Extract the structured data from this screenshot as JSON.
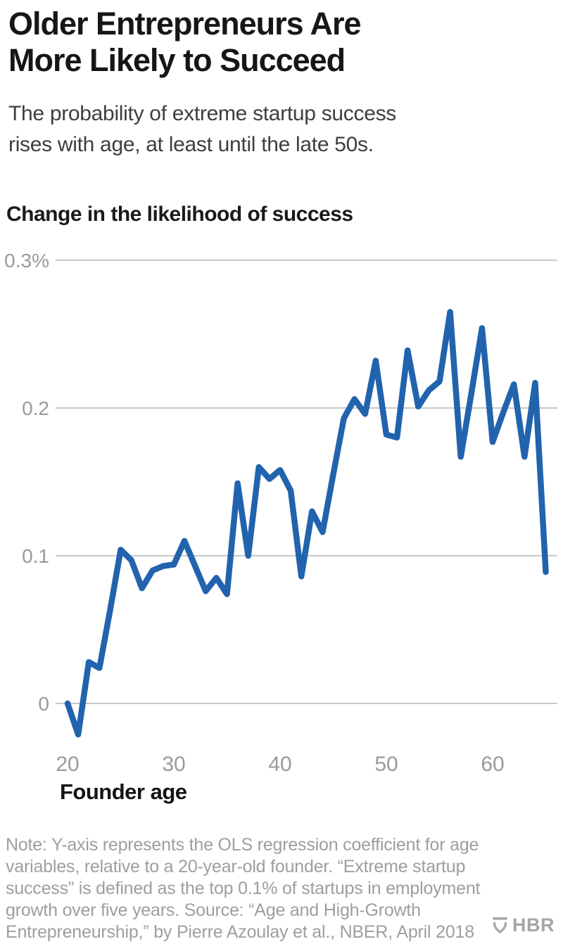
{
  "header": {
    "title_lines": [
      "Older Entrepreneurs Are",
      "More Likely to Succeed"
    ],
    "subtitle_lines": [
      "The probability of extreme startup success",
      "rises with age, at least until the late 50s."
    ]
  },
  "chart_data": {
    "type": "line",
    "title": "Change in the likelihood of success",
    "xlabel": "Founder age",
    "ylabel": "Change in the likelihood of success (%)",
    "series_name": "OLS regression coefficient relative to a 20-year-old founder",
    "x": [
      20,
      21,
      22,
      23,
      24,
      25,
      26,
      27,
      28,
      29,
      30,
      31,
      32,
      33,
      34,
      35,
      36,
      37,
      38,
      39,
      40,
      41,
      42,
      43,
      44,
      45,
      46,
      47,
      48,
      49,
      50,
      51,
      52,
      53,
      54,
      55,
      56,
      57,
      58,
      59,
      60,
      61,
      62,
      63,
      64,
      65
    ],
    "values": [
      0.0,
      -0.021,
      0.028,
      0.024,
      0.063,
      0.104,
      0.097,
      0.078,
      0.09,
      0.093,
      0.094,
      0.11,
      0.093,
      0.076,
      0.085,
      0.074,
      0.149,
      0.1,
      0.16,
      0.152,
      0.158,
      0.144,
      0.086,
      0.13,
      0.116,
      0.155,
      0.193,
      0.206,
      0.196,
      0.232,
      0.182,
      0.18,
      0.239,
      0.201,
      0.212,
      0.218,
      0.265,
      0.167,
      0.21,
      0.254,
      0.177,
      0.197,
      0.216,
      0.167,
      0.217,
      0.089
    ],
    "x_ticks": [
      20,
      30,
      40,
      50,
      60
    ],
    "y_ticks": [
      {
        "value": 0.3,
        "label": "0.3%"
      },
      {
        "value": 0.2,
        "label": "0.2"
      },
      {
        "value": 0.1,
        "label": "0.1"
      },
      {
        "value": 0.0,
        "label": "0"
      }
    ],
    "xlim": [
      20,
      65
    ],
    "ylim": [
      -0.05,
      0.32
    ],
    "grid": "horizontal",
    "legend": "none",
    "line_color": "#2263ae"
  },
  "footer": {
    "note_lines": [
      "Note: Y-axis represents the OLS regression coefficient for age",
      "variables, relative to a 20-year-old founder. “Extreme startup",
      "success” is defined as the top 0.1% of startups in employment",
      "growth over five years. Source: “Age and High-Growth",
      "Entrepreneurship,” by Pierre Azoulay et al., NBER, April 2018"
    ],
    "logo_text": "HBR"
  },
  "colors": {
    "background": "#ffffff",
    "title": "#161616",
    "subtitle": "#3e3e3e",
    "axis_label": "#9a9a9a",
    "gridline": "#c9c9c9",
    "line": "#2263ae",
    "note": "#9e9e9e",
    "logo": "#a6a6a6"
  }
}
